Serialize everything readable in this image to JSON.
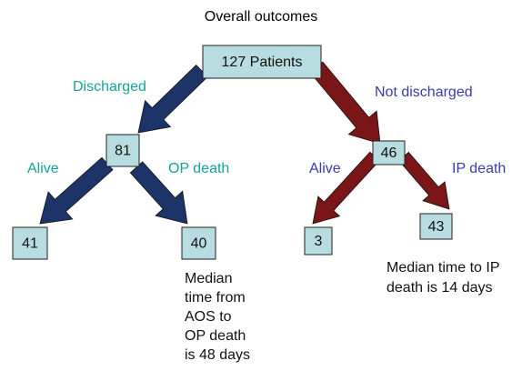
{
  "title": "Overall outcomes",
  "nodes": [
    {
      "label": "127 Patients"
    },
    {
      "label": 81
    },
    {
      "label": 46
    },
    {
      "label": 41
    },
    {
      "label": 40
    },
    {
      "label": 3
    },
    {
      "label": 43
    }
  ],
  "edges": [
    {
      "label": "Discharged"
    },
    {
      "label": "Not discharged"
    },
    {
      "label": "Alive"
    },
    {
      "label": "OP death"
    },
    {
      "label": "Alive"
    },
    {
      "label": "IP death"
    }
  ],
  "notes": [
    {
      "lines": [
        "Median",
        "time from",
        "AOS to",
        "OP death",
        "is 48 days"
      ]
    },
    {
      "lines": [
        "Median time to IP",
        "death is 14 days"
      ]
    }
  ]
}
